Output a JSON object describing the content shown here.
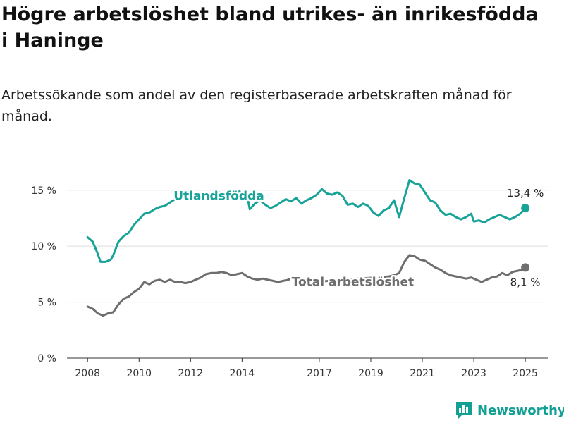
{
  "header": {
    "title": "Högre arbetslöshet bland utrikes- än inrikesfödda i Haninge",
    "subtitle": "Arbetssökande som andel av den registerbaserade arbetskraften månad för månad."
  },
  "footer": {
    "brand": "Newsworthy",
    "brand_color": "#12a094",
    "logo_icon": "bar-chart-speech-icon"
  },
  "chart_data": {
    "type": "line",
    "title": "",
    "xlabel": "",
    "ylabel": "",
    "ylim": [
      0,
      17
    ],
    "xlim": [
      2007.2,
      2025.9
    ],
    "y_ticks": [
      {
        "value": 0,
        "label": "0 %"
      },
      {
        "value": 5,
        "label": "5 %"
      },
      {
        "value": 10,
        "label": "10 %"
      },
      {
        "value": 15,
        "label": "15 %"
      }
    ],
    "x_ticks": [
      {
        "value": 2008,
        "label": "2008"
      },
      {
        "value": 2010,
        "label": "2010"
      },
      {
        "value": 2012,
        "label": "2012"
      },
      {
        "value": 2014,
        "label": "2014"
      },
      {
        "value": 2017,
        "label": "2017"
      },
      {
        "value": 2019,
        "label": "2019"
      },
      {
        "value": 2021,
        "label": "2021"
      },
      {
        "value": 2023,
        "label": "2023"
      },
      {
        "value": 2025,
        "label": "2025"
      }
    ],
    "grid": true,
    "legend": "inline labels",
    "series": [
      {
        "name": "Utlandsfödda",
        "color": "#17a398",
        "end_label": "13,4 %",
        "points": [
          [
            2008.0,
            10.8
          ],
          [
            2008.2,
            10.4
          ],
          [
            2008.4,
            9.3
          ],
          [
            2008.5,
            8.6
          ],
          [
            2008.7,
            8.6
          ],
          [
            2008.9,
            8.8
          ],
          [
            2009.0,
            9.2
          ],
          [
            2009.2,
            10.4
          ],
          [
            2009.4,
            10.9
          ],
          [
            2009.6,
            11.2
          ],
          [
            2009.8,
            11.9
          ],
          [
            2010.0,
            12.4
          ],
          [
            2010.2,
            12.9
          ],
          [
            2010.4,
            13.0
          ],
          [
            2010.6,
            13.3
          ],
          [
            2010.8,
            13.5
          ],
          [
            2011.0,
            13.6
          ],
          [
            2011.2,
            13.9
          ],
          [
            2011.4,
            14.2
          ],
          [
            2011.6,
            14.4
          ],
          [
            2011.8,
            14.3
          ],
          [
            2012.0,
            14.2
          ],
          [
            2012.2,
            14.4
          ],
          [
            2012.5,
            14.5
          ],
          [
            2012.8,
            14.7
          ],
          [
            2013.1,
            14.8
          ],
          [
            2013.4,
            14.6
          ],
          [
            2013.7,
            14.7
          ],
          [
            2013.9,
            14.9
          ],
          [
            2014.0,
            14.6
          ],
          [
            2014.2,
            14.5
          ],
          [
            2014.3,
            13.3
          ],
          [
            2014.5,
            13.8
          ],
          [
            2014.7,
            14.1
          ],
          [
            2014.9,
            13.7
          ],
          [
            2015.1,
            13.4
          ],
          [
            2015.3,
            13.6
          ],
          [
            2015.5,
            13.9
          ],
          [
            2015.7,
            14.2
          ],
          [
            2015.9,
            14.0
          ],
          [
            2016.1,
            14.3
          ],
          [
            2016.3,
            13.8
          ],
          [
            2016.5,
            14.1
          ],
          [
            2016.7,
            14.3
          ],
          [
            2016.9,
            14.6
          ],
          [
            2017.1,
            15.1
          ],
          [
            2017.3,
            14.7
          ],
          [
            2017.5,
            14.6
          ],
          [
            2017.7,
            14.8
          ],
          [
            2017.9,
            14.5
          ],
          [
            2018.1,
            13.7
          ],
          [
            2018.3,
            13.8
          ],
          [
            2018.5,
            13.5
          ],
          [
            2018.7,
            13.8
          ],
          [
            2018.9,
            13.6
          ],
          [
            2019.1,
            13.0
          ],
          [
            2019.3,
            12.7
          ],
          [
            2019.5,
            13.2
          ],
          [
            2019.7,
            13.4
          ],
          [
            2019.9,
            14.1
          ],
          [
            2020.1,
            12.6
          ],
          [
            2020.3,
            14.3
          ],
          [
            2020.5,
            15.9
          ],
          [
            2020.7,
            15.6
          ],
          [
            2020.9,
            15.5
          ],
          [
            2021.1,
            14.8
          ],
          [
            2021.3,
            14.1
          ],
          [
            2021.5,
            13.9
          ],
          [
            2021.7,
            13.2
          ],
          [
            2021.9,
            12.8
          ],
          [
            2022.1,
            12.9
          ],
          [
            2022.3,
            12.6
          ],
          [
            2022.5,
            12.4
          ],
          [
            2022.7,
            12.6
          ],
          [
            2022.9,
            12.9
          ],
          [
            2023.0,
            12.2
          ],
          [
            2023.2,
            12.3
          ],
          [
            2023.4,
            12.1
          ],
          [
            2023.6,
            12.4
          ],
          [
            2023.8,
            12.6
          ],
          [
            2024.0,
            12.8
          ],
          [
            2024.2,
            12.6
          ],
          [
            2024.4,
            12.4
          ],
          [
            2024.6,
            12.6
          ],
          [
            2024.8,
            12.9
          ],
          [
            2025.0,
            13.4
          ]
        ]
      },
      {
        "name": "Total arbetslöshet",
        "color": "#6e6e6e",
        "end_label": "8,1 %",
        "points": [
          [
            2008.0,
            4.6
          ],
          [
            2008.2,
            4.4
          ],
          [
            2008.4,
            4.0
          ],
          [
            2008.6,
            3.8
          ],
          [
            2008.8,
            4.0
          ],
          [
            2009.0,
            4.1
          ],
          [
            2009.2,
            4.8
          ],
          [
            2009.4,
            5.3
          ],
          [
            2009.6,
            5.5
          ],
          [
            2009.8,
            5.9
          ],
          [
            2010.0,
            6.2
          ],
          [
            2010.2,
            6.8
          ],
          [
            2010.4,
            6.6
          ],
          [
            2010.6,
            6.9
          ],
          [
            2010.8,
            7.0
          ],
          [
            2011.0,
            6.8
          ],
          [
            2011.2,
            7.0
          ],
          [
            2011.4,
            6.8
          ],
          [
            2011.6,
            6.8
          ],
          [
            2011.8,
            6.7
          ],
          [
            2012.0,
            6.8
          ],
          [
            2012.2,
            7.0
          ],
          [
            2012.4,
            7.2
          ],
          [
            2012.6,
            7.5
          ],
          [
            2012.8,
            7.6
          ],
          [
            2013.0,
            7.6
          ],
          [
            2013.2,
            7.7
          ],
          [
            2013.4,
            7.6
          ],
          [
            2013.6,
            7.4
          ],
          [
            2013.8,
            7.5
          ],
          [
            2014.0,
            7.6
          ],
          [
            2014.2,
            7.3
          ],
          [
            2014.4,
            7.1
          ],
          [
            2014.6,
            7.0
          ],
          [
            2014.8,
            7.1
          ],
          [
            2015.0,
            7.0
          ],
          [
            2015.2,
            6.9
          ],
          [
            2015.4,
            6.8
          ],
          [
            2015.6,
            6.9
          ],
          [
            2015.8,
            7.0
          ],
          [
            2016.0,
            7.2
          ],
          [
            2016.2,
            7.0
          ],
          [
            2016.4,
            7.1
          ],
          [
            2016.6,
            6.9
          ],
          [
            2016.8,
            6.8
          ],
          [
            2019.7,
            7.3
          ],
          [
            2019.9,
            7.4
          ],
          [
            2020.1,
            7.6
          ],
          [
            2020.3,
            8.6
          ],
          [
            2020.5,
            9.2
          ],
          [
            2020.7,
            9.1
          ],
          [
            2020.9,
            8.8
          ],
          [
            2021.1,
            8.7
          ],
          [
            2021.3,
            8.4
          ],
          [
            2021.5,
            8.1
          ],
          [
            2021.7,
            7.9
          ],
          [
            2021.9,
            7.6
          ],
          [
            2022.1,
            7.4
          ],
          [
            2022.3,
            7.3
          ],
          [
            2022.5,
            7.2
          ],
          [
            2022.7,
            7.1
          ],
          [
            2022.9,
            7.2
          ],
          [
            2023.1,
            7.0
          ],
          [
            2023.3,
            6.8
          ],
          [
            2023.5,
            7.0
          ],
          [
            2023.7,
            7.2
          ],
          [
            2023.9,
            7.3
          ],
          [
            2024.1,
            7.6
          ],
          [
            2024.3,
            7.4
          ],
          [
            2024.5,
            7.7
          ],
          [
            2024.7,
            7.8
          ],
          [
            2024.9,
            7.9
          ],
          [
            2025.0,
            8.1
          ]
        ]
      }
    ]
  }
}
